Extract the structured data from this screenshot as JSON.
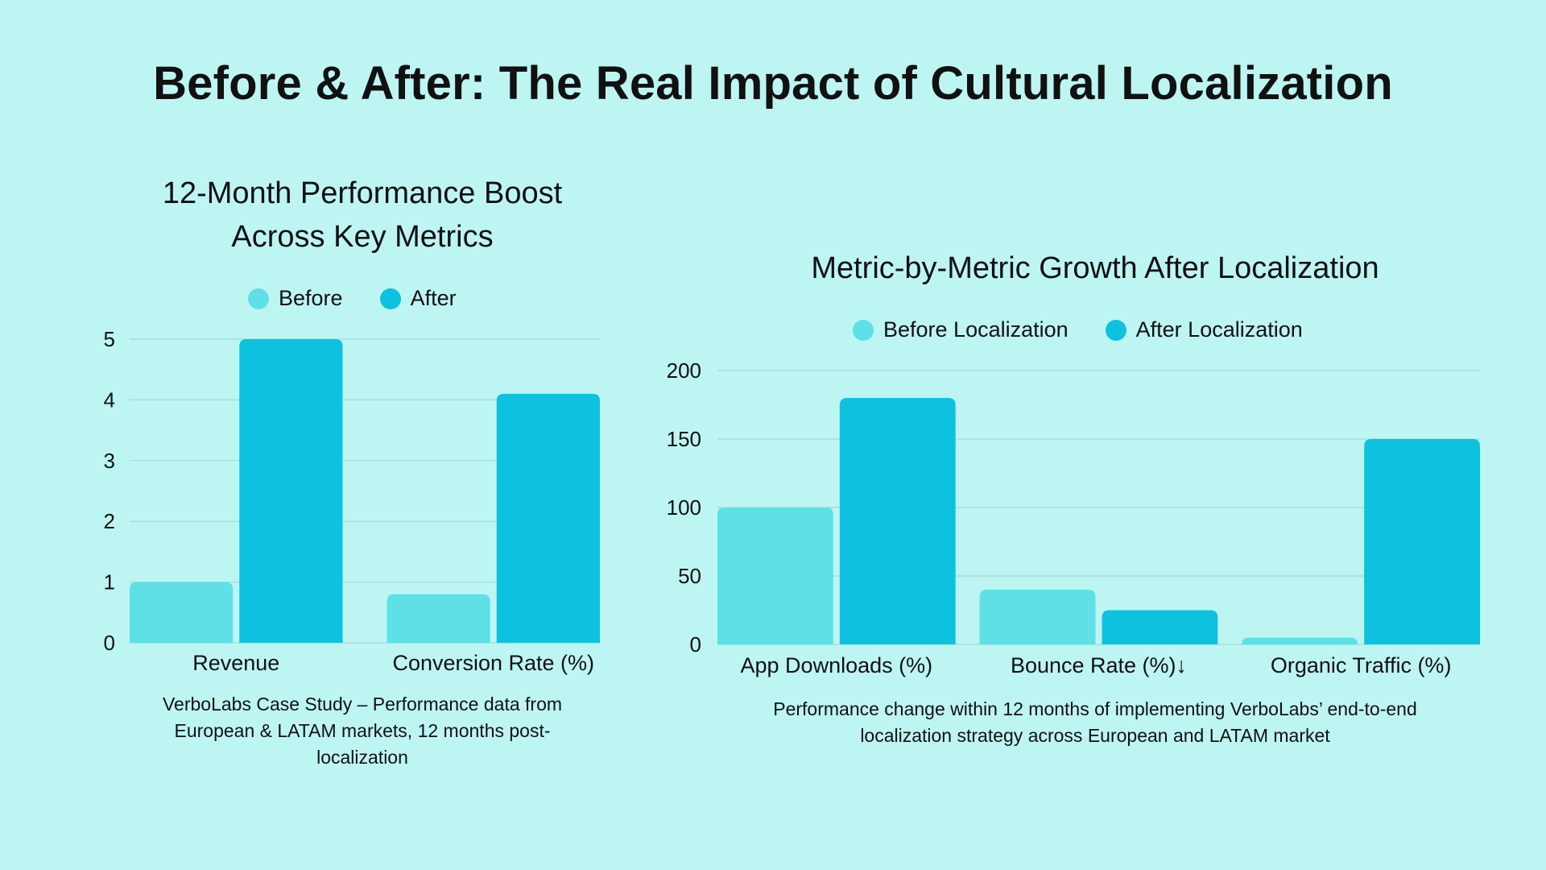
{
  "title": "Before & After: The Real Impact of Cultural Localization",
  "colors": {
    "before": "#5ee0e6",
    "after": "#0ec2df",
    "background": "#bdf5f3",
    "grid": "#9fdcd9"
  },
  "chart_data": [
    {
      "type": "bar",
      "title": "12-Month Performance Boost Across Key Metrics",
      "title_lines": [
        "12-Month Performance Boost",
        "Across Key Metrics"
      ],
      "categories": [
        "Revenue",
        "Conversion Rate (%)"
      ],
      "series": [
        {
          "name": "Before",
          "values": [
            1,
            0.8
          ]
        },
        {
          "name": "After",
          "values": [
            5,
            4.1
          ]
        }
      ],
      "xlabel": "",
      "ylabel": "",
      "ylim": [
        0,
        5
      ],
      "yticks": [
        0,
        1,
        2,
        3,
        4,
        5
      ],
      "grid": true,
      "legend": "top-center",
      "caption_lines": [
        "VerboLabs Case Study – Performance data from",
        "European & LATAM markets, 12 months post-",
        "localization"
      ]
    },
    {
      "type": "bar",
      "title": "Metric-by-Metric Growth After Localization",
      "categories": [
        "App Downloads (%)",
        "Bounce Rate (%)↓",
        "Organic Traffic (%)"
      ],
      "series": [
        {
          "name": "Before Localization",
          "values": [
            100,
            40,
            5
          ]
        },
        {
          "name": "After Localization",
          "values": [
            180,
            25,
            150
          ]
        }
      ],
      "xlabel": "",
      "ylabel": "",
      "ylim": [
        0,
        200
      ],
      "yticks": [
        0,
        50,
        100,
        150,
        200
      ],
      "grid": true,
      "legend": "top-center",
      "caption_lines": [
        "Performance change within 12 months of implementing VerboLabs’ end-to-end",
        "localization strategy across European and LATAM market"
      ]
    }
  ]
}
